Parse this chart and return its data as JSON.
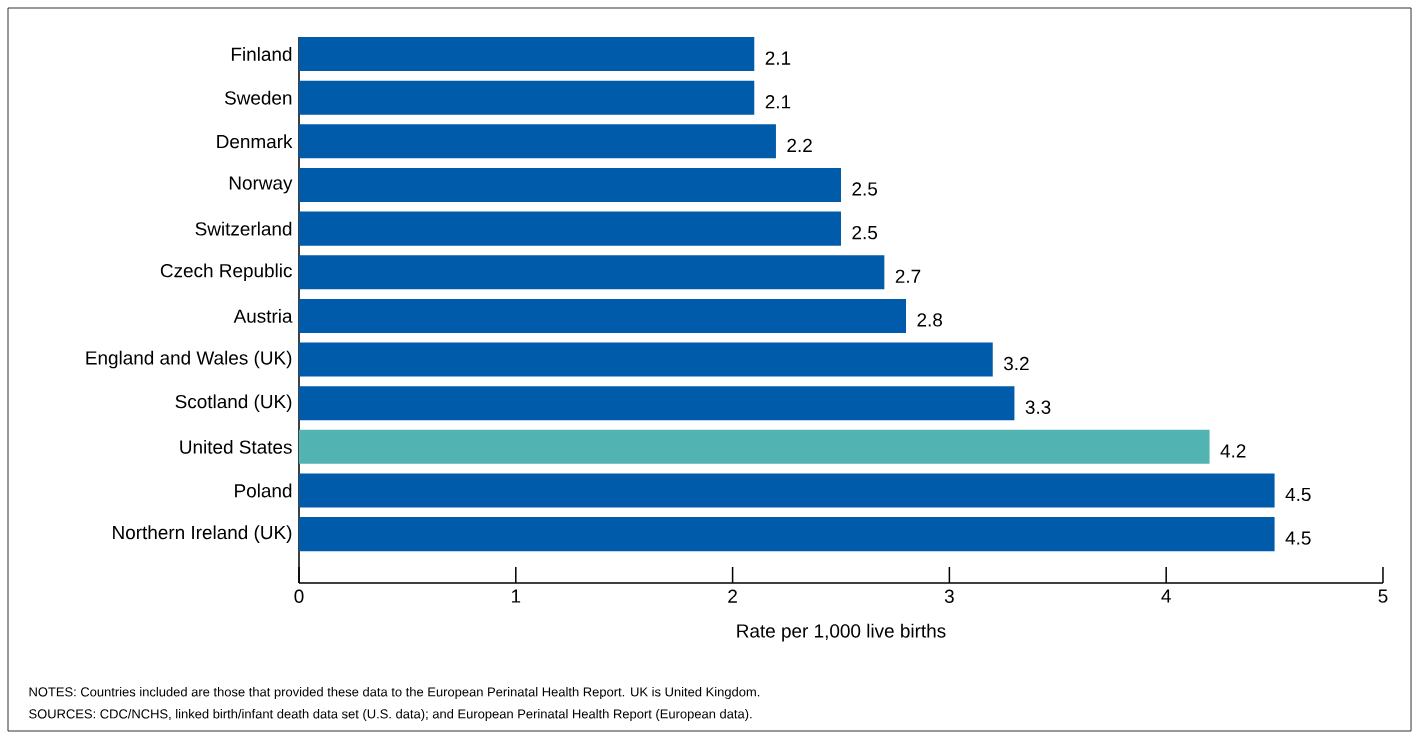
{
  "chart_data": {
    "type": "bar",
    "orientation": "horizontal",
    "categories": [
      "Finland",
      "Sweden",
      "Denmark",
      "Norway",
      "Switzerland",
      "Czech Republic",
      "Austria",
      "England and Wales (UK)",
      "Scotland (UK)",
      "United States",
      "Poland",
      "Northern Ireland (UK)"
    ],
    "values": [
      2.1,
      2.1,
      2.2,
      2.5,
      2.5,
      2.7,
      2.8,
      3.2,
      3.3,
      4.2,
      4.5,
      4.5
    ],
    "value_labels": [
      "2.1",
      "2.1",
      "2.2",
      "2.5",
      "2.5",
      "2.7",
      "2.8",
      "3.2",
      "3.3",
      "4.2",
      "4.5",
      "4.5"
    ],
    "colors": [
      "#005baa",
      "#005baa",
      "#005baa",
      "#005baa",
      "#005baa",
      "#005baa",
      "#005baa",
      "#005baa",
      "#005baa",
      "#52b3b3",
      "#005baa",
      "#005baa"
    ],
    "xlim": [
      0,
      5
    ],
    "xticks": [
      0,
      1,
      2,
      3,
      4,
      5
    ],
    "xlabel": "Rate per 1,000 live births",
    "annotations": [
      "NOTES: Countries included are those that provided these data to the European Perinatal Health Report. UK is United Kingdom.",
      "SOURCES: CDC/NCHS, linked birth/infant death data set (U.S. data); and European Perinatal Health Report (European data)."
    ]
  }
}
